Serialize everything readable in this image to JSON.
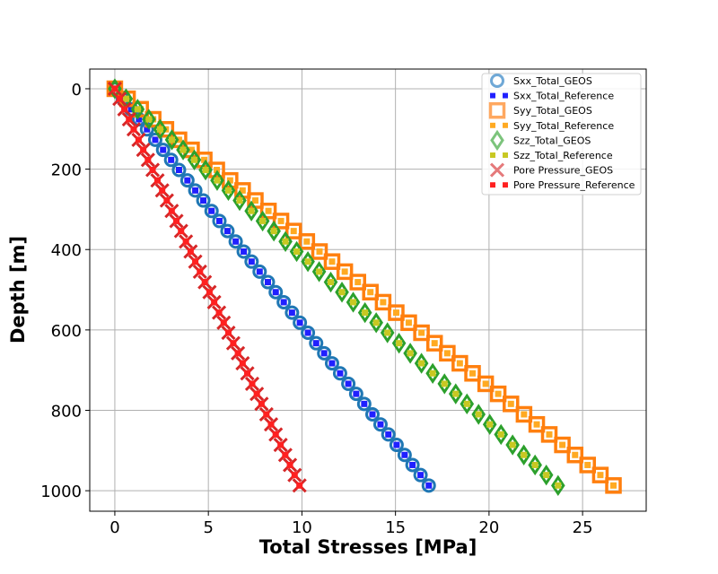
{
  "chart_data": {
    "type": "scatter",
    "title": "",
    "xlabel": "Total Stresses [MPa]",
    "ylabel": "Depth [m]",
    "xlim": [
      -1.34,
      28.4
    ],
    "ylim": [
      1051,
      -49
    ],
    "y_inverted": true,
    "grid": true,
    "legend_placement": "top-right",
    "xticks": [
      "0",
      "5",
      "10",
      "15",
      "20",
      "25"
    ],
    "yticks": [
      "0",
      "200",
      "400",
      "600",
      "800",
      "1000"
    ],
    "depth": [
      0,
      25,
      51,
      76,
      101,
      127,
      152,
      177,
      202,
      228,
      253,
      278,
      304,
      329,
      354,
      380,
      405,
      430,
      455,
      481,
      506,
      531,
      557,
      582,
      607,
      633,
      658,
      683,
      708,
      734,
      759,
      784,
      810,
      835,
      860,
      886,
      911,
      936,
      961,
      987
    ],
    "series": [
      {
        "name": "Sxx_Total_GEOS",
        "marker": "circle",
        "color": "#1f77b4",
        "legend_color": "#6fa8d6",
        "values": [
          0,
          0.43,
          0.87,
          1.29,
          1.72,
          2.16,
          2.58,
          3.01,
          3.43,
          3.88,
          4.3,
          4.73,
          5.17,
          5.59,
          6.02,
          6.46,
          6.89,
          7.31,
          7.74,
          8.18,
          8.6,
          9.03,
          9.47,
          9.89,
          10.32,
          10.76,
          11.19,
          11.61,
          12.04,
          12.48,
          12.9,
          13.33,
          13.77,
          14.2,
          14.62,
          15.06,
          15.49,
          15.91,
          16.34,
          16.78
        ]
      },
      {
        "name": "Sxx_Total_Reference",
        "marker": "dot",
        "color": "#2020ff",
        "legend_color": "#2020ff",
        "values": [
          0,
          0.43,
          0.87,
          1.29,
          1.72,
          2.16,
          2.58,
          3.01,
          3.43,
          3.88,
          4.3,
          4.73,
          5.17,
          5.59,
          6.02,
          6.46,
          6.89,
          7.31,
          7.74,
          8.18,
          8.6,
          9.03,
          9.47,
          9.89,
          10.32,
          10.76,
          11.19,
          11.61,
          12.04,
          12.48,
          12.9,
          13.33,
          13.77,
          14.2,
          14.62,
          15.06,
          15.49,
          15.91,
          16.34,
          16.78
        ]
      },
      {
        "name": "Syy_Total_GEOS",
        "marker": "square",
        "color": "#ff7f0e",
        "legend_color": "#ffa860",
        "values": [
          0,
          0.68,
          1.38,
          2.05,
          2.73,
          3.43,
          4.1,
          4.78,
          5.45,
          6.16,
          6.83,
          7.51,
          8.21,
          8.88,
          9.56,
          10.26,
          10.94,
          11.61,
          12.29,
          12.99,
          13.66,
          14.34,
          15.04,
          15.71,
          16.39,
          17.09,
          17.77,
          18.44,
          19.12,
          19.82,
          20.49,
          21.17,
          21.87,
          22.55,
          23.22,
          23.92,
          24.6,
          25.27,
          25.95,
          26.65
        ]
      },
      {
        "name": "Syy_Total_Reference",
        "marker": "dot",
        "color": "#ffaa22",
        "legend_color": "#ffaa22",
        "values": [
          0,
          0.68,
          1.38,
          2.05,
          2.73,
          3.43,
          4.1,
          4.78,
          5.45,
          6.16,
          6.83,
          7.51,
          8.21,
          8.88,
          9.56,
          10.26,
          10.94,
          11.61,
          12.29,
          12.99,
          13.66,
          14.34,
          15.04,
          15.71,
          16.39,
          17.09,
          17.77,
          18.44,
          19.12,
          19.82,
          20.49,
          21.17,
          21.87,
          22.55,
          23.22,
          23.92,
          24.6,
          25.27,
          25.95,
          26.65
        ]
      },
      {
        "name": "Szz_Total_GEOS",
        "marker": "diamond",
        "color": "#2ca02c",
        "legend_color": "#7cc47c",
        "values": [
          0,
          0.6,
          1.22,
          1.82,
          2.42,
          3.05,
          3.65,
          4.25,
          4.85,
          5.47,
          6.07,
          6.67,
          7.3,
          7.9,
          8.5,
          9.12,
          9.72,
          10.32,
          10.92,
          11.54,
          12.14,
          12.74,
          13.37,
          13.97,
          14.57,
          15.19,
          15.79,
          16.39,
          16.99,
          17.62,
          18.22,
          18.82,
          19.44,
          20.04,
          20.64,
          21.26,
          21.86,
          22.46,
          23.06,
          23.69
        ]
      },
      {
        "name": "Szz_Total_Reference",
        "marker": "dot",
        "color": "#c8c822",
        "legend_color": "#c8c822",
        "values": [
          0,
          0.6,
          1.22,
          1.82,
          2.42,
          3.05,
          3.65,
          4.25,
          4.85,
          5.47,
          6.07,
          6.67,
          7.3,
          7.9,
          8.5,
          9.12,
          9.72,
          10.32,
          10.92,
          11.54,
          12.14,
          12.74,
          13.37,
          13.97,
          14.57,
          15.19,
          15.79,
          16.39,
          16.99,
          17.62,
          18.22,
          18.82,
          19.44,
          20.04,
          20.64,
          21.26,
          21.86,
          22.46,
          23.06,
          23.69
        ]
      },
      {
        "name": "Pore Pressure_GEOS",
        "marker": "x",
        "color": "#d62728",
        "legend_color": "#e57a7b",
        "values": [
          0,
          0.25,
          0.51,
          0.76,
          1.01,
          1.27,
          1.52,
          1.77,
          2.02,
          2.28,
          2.53,
          2.78,
          3.04,
          3.29,
          3.54,
          3.8,
          4.05,
          4.3,
          4.55,
          4.81,
          5.06,
          5.31,
          5.57,
          5.82,
          6.07,
          6.33,
          6.58,
          6.83,
          7.08,
          7.34,
          7.59,
          7.84,
          8.1,
          8.35,
          8.6,
          8.86,
          9.11,
          9.36,
          9.61,
          9.87
        ]
      },
      {
        "name": "Pore Pressure_Reference",
        "marker": "dot",
        "color": "#ff2020",
        "legend_color": "#ff2020",
        "values": [
          0,
          0.25,
          0.51,
          0.76,
          1.01,
          1.27,
          1.52,
          1.77,
          2.02,
          2.28,
          2.53,
          2.78,
          3.04,
          3.29,
          3.54,
          3.8,
          4.05,
          4.3,
          4.55,
          4.81,
          5.06,
          5.31,
          5.57,
          5.82,
          6.07,
          6.33,
          6.58,
          6.83,
          7.08,
          7.34,
          7.59,
          7.84,
          8.1,
          8.35,
          8.6,
          8.86,
          9.11,
          9.36,
          9.61,
          9.87
        ]
      }
    ]
  }
}
